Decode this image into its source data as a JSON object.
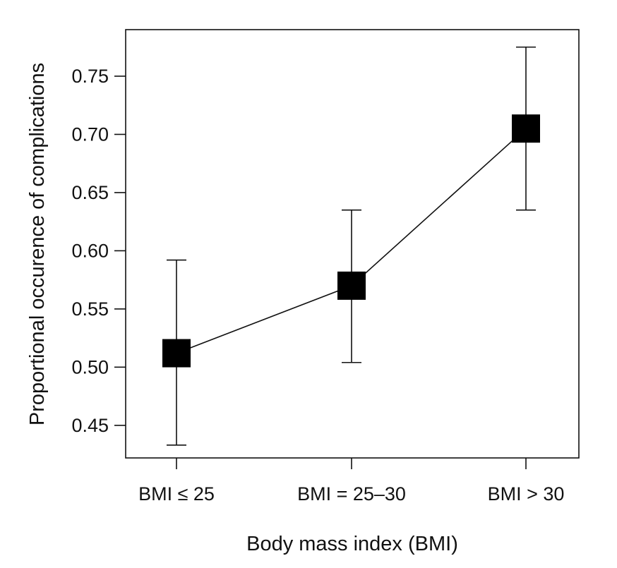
{
  "chart_data": {
    "type": "scatter",
    "title": "",
    "xlabel": "Body mass index (BMI)",
    "ylabel": "Proportional occurence of complications",
    "categories": [
      "BMI ≤ 25",
      "BMI = 25–30",
      "BMI > 30"
    ],
    "series": [
      {
        "values": [
          0.512,
          0.57,
          0.705
        ],
        "error_low": [
          0.433,
          0.504,
          0.635
        ],
        "error_high": [
          0.592,
          0.635,
          0.775
        ],
        "marker": "square",
        "color": "#000000",
        "connected": true
      }
    ],
    "yticks": [
      0.45,
      0.5,
      0.55,
      0.6,
      0.65,
      0.7,
      0.75
    ],
    "ytick_labels": [
      "0.45",
      "0.50",
      "0.55",
      "0.60",
      "0.65",
      "0.70",
      "0.75"
    ],
    "ylim": [
      0.422,
      0.79
    ],
    "grid": false,
    "legend": "none"
  }
}
